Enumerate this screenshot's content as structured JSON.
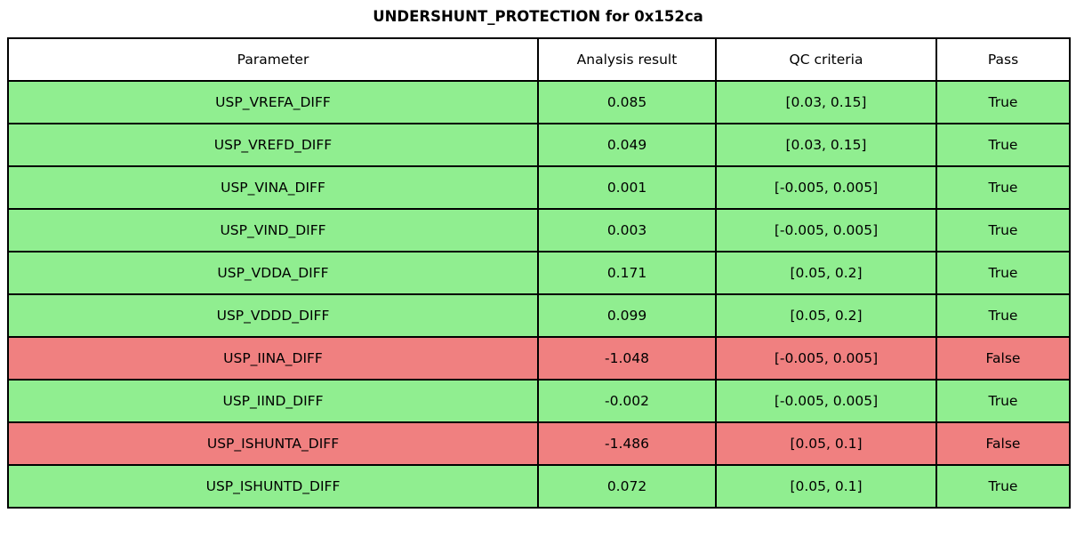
{
  "title": "UNDERSHUNT_PROTECTION for 0x152ca",
  "colors": {
    "pass_row": "#90ee90",
    "fail_row": "#f08080",
    "header_bg": "#ffffff",
    "border": "#000000"
  },
  "chart_data": {
    "type": "table",
    "title": "UNDERSHUNT_PROTECTION for 0x152ca",
    "columns": [
      "Parameter",
      "Analysis result",
      "QC criteria",
      "Pass"
    ],
    "rows": [
      {
        "parameter": "USP_VREFA_DIFF",
        "analysis_result": "0.085",
        "qc_criteria": "[0.03, 0.15]",
        "pass": "True",
        "status": "pass"
      },
      {
        "parameter": "USP_VREFD_DIFF",
        "analysis_result": "0.049",
        "qc_criteria": "[0.03, 0.15]",
        "pass": "True",
        "status": "pass"
      },
      {
        "parameter": "USP_VINA_DIFF",
        "analysis_result": "0.001",
        "qc_criteria": "[-0.005, 0.005]",
        "pass": "True",
        "status": "pass"
      },
      {
        "parameter": "USP_VIND_DIFF",
        "analysis_result": "0.003",
        "qc_criteria": "[-0.005, 0.005]",
        "pass": "True",
        "status": "pass"
      },
      {
        "parameter": "USP_VDDA_DIFF",
        "analysis_result": "0.171",
        "qc_criteria": "[0.05, 0.2]",
        "pass": "True",
        "status": "pass"
      },
      {
        "parameter": "USP_VDDD_DIFF",
        "analysis_result": "0.099",
        "qc_criteria": "[0.05, 0.2]",
        "pass": "True",
        "status": "pass"
      },
      {
        "parameter": "USP_IINA_DIFF",
        "analysis_result": "-1.048",
        "qc_criteria": "[-0.005, 0.005]",
        "pass": "False",
        "status": "fail"
      },
      {
        "parameter": "USP_IIND_DIFF",
        "analysis_result": "-0.002",
        "qc_criteria": "[-0.005, 0.005]",
        "pass": "True",
        "status": "pass"
      },
      {
        "parameter": "USP_ISHUNTA_DIFF",
        "analysis_result": "-1.486",
        "qc_criteria": "[0.05, 0.1]",
        "pass": "False",
        "status": "fail"
      },
      {
        "parameter": "USP_ISHUNTD_DIFF",
        "analysis_result": "0.072",
        "qc_criteria": "[0.05, 0.1]",
        "pass": "True",
        "status": "pass"
      }
    ]
  }
}
